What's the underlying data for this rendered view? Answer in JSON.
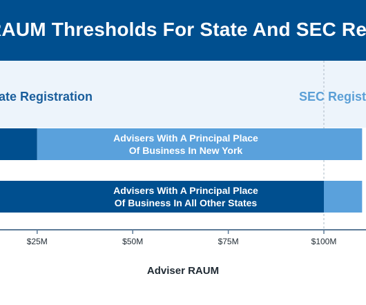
{
  "title": "RAUM Thresholds For State And SEC Registration",
  "chart_data": {
    "type": "bar",
    "orientation": "horizontal",
    "stacked": true,
    "title": "RAUM Thresholds For State And SEC Registration",
    "xlabel": "Adviser RAUM",
    "ylabel": "",
    "x_ticks": [
      {
        "value": 25,
        "label": "$25M"
      },
      {
        "value": 50,
        "label": "$50M"
      },
      {
        "value": 75,
        "label": "$75M"
      },
      {
        "value": 100,
        "label": "$100M"
      }
    ],
    "xlim": [
      0,
      110
    ],
    "regions": [
      {
        "label": "State Registration",
        "side": "left",
        "color": "#1a5e9c"
      },
      {
        "label": "SEC Registration",
        "side": "right",
        "color": "#5b9fd6"
      }
    ],
    "categories": [
      "Advisers With A Principal Place Of Business In New York",
      "Advisers With A Principal Place Of Business In All Other States"
    ],
    "rows": [
      {
        "label": "Advisers With A Principal Place Of Business In New York",
        "label_lines": [
          "Advisers With A Principal Place",
          "Of Business In New York"
        ],
        "segments": [
          {
            "start": 0,
            "end": 25,
            "color": "#004f8f"
          },
          {
            "start": 25,
            "end": 110,
            "color": "#5aa1dc"
          }
        ]
      },
      {
        "label": "Advisers With A Principal Place Of Business In All Other States",
        "label_lines": [
          "Advisers With A Principal Place",
          "Of Business In All Other States"
        ],
        "segments": [
          {
            "start": 0,
            "end": 100,
            "color": "#004f8f"
          },
          {
            "start": 100,
            "end": 110,
            "color": "#5aa1dc"
          }
        ]
      }
    ],
    "reference_line": {
      "value": 100,
      "style": "dashed"
    },
    "grid": false,
    "legend": "none"
  }
}
